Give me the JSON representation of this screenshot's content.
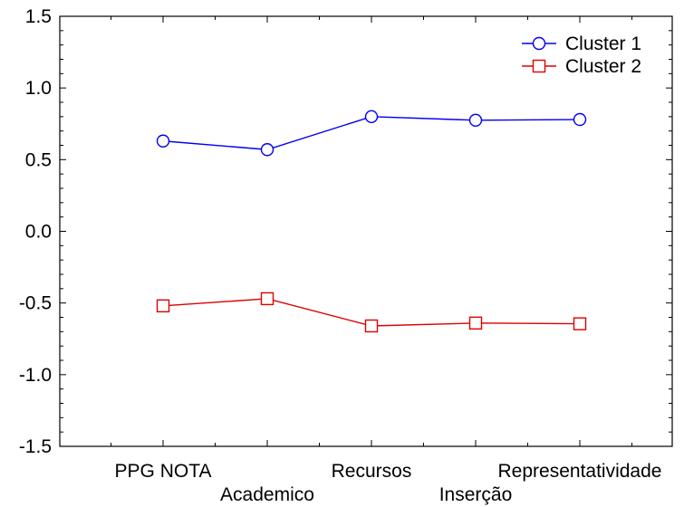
{
  "chart_data": {
    "type": "line",
    "categories": [
      "PPG NOTA",
      "Academico",
      "Recursos",
      "Inserção",
      "Representatividade"
    ],
    "series": [
      {
        "name": "Cluster  1",
        "values": [
          0.63,
          0.57,
          0.8,
          0.775,
          0.78
        ],
        "color": "#0000ee",
        "marker": "circle"
      },
      {
        "name": "Cluster  2",
        "values": [
          -0.52,
          -0.47,
          -0.66,
          -0.64,
          -0.645
        ],
        "color": "#dd0000",
        "marker": "square"
      }
    ],
    "y_ticks": [
      "1.5",
      "1.0",
      "0.5",
      "0.0",
      "-0.5",
      "-1.0",
      "-1.5"
    ],
    "ylim": [
      -1.5,
      1.5
    ],
    "title": "",
    "xlabel": "",
    "ylabel": "",
    "grid": false,
    "legend_position": "top-right"
  }
}
